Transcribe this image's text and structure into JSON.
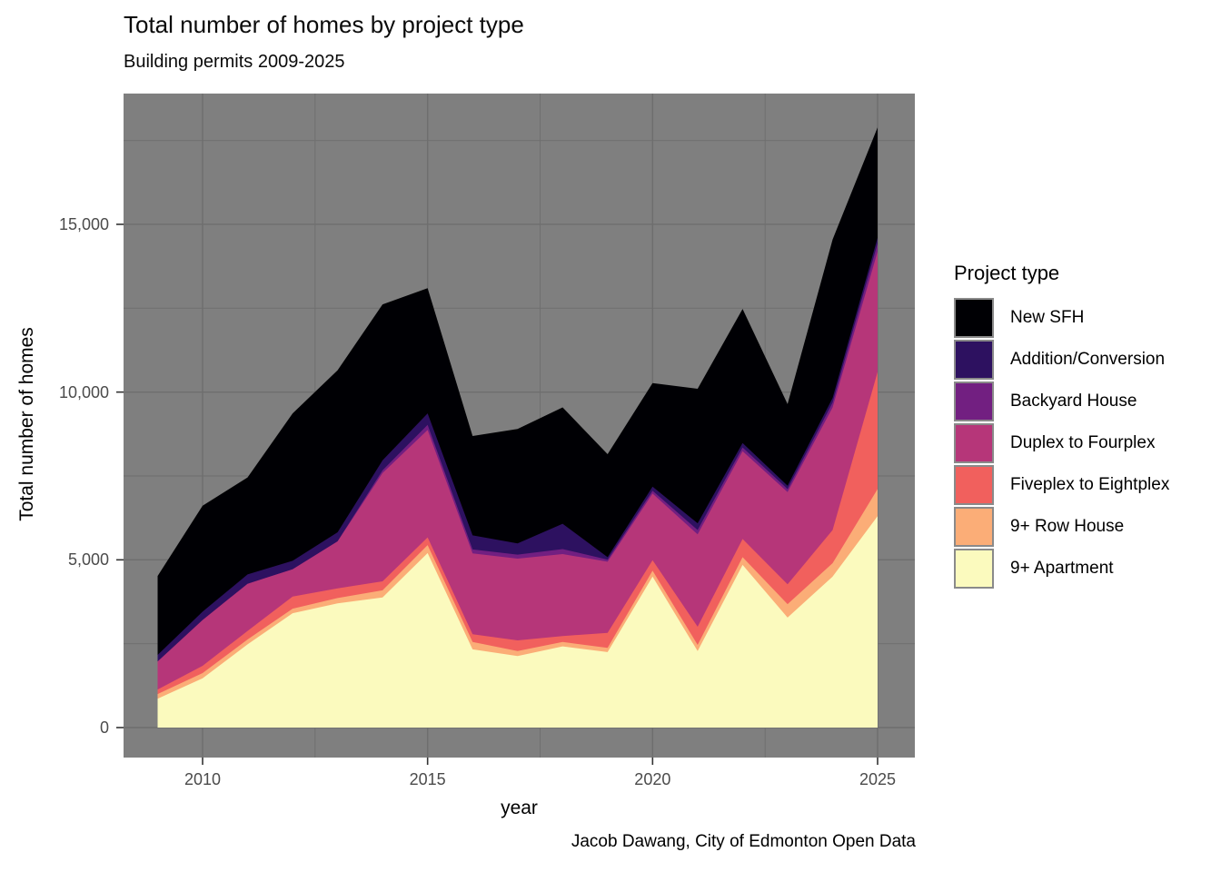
{
  "header": {
    "title": "Total number of homes by project type",
    "subtitle": "Building permits 2009-2025"
  },
  "caption": "Jacob Dawang, City of Edmonton Open Data",
  "legend": {
    "title": "Project type",
    "position": "right"
  },
  "axes": {
    "x_label": "year",
    "y_label": "Total number of homes",
    "x_tick_labels": [
      "2010",
      "2015",
      "2020",
      "2025"
    ],
    "y_tick_labels": [
      "0",
      "5,000",
      "10,000",
      "15,000"
    ]
  },
  "chart_data": {
    "type": "area",
    "stacked": true,
    "title": "Total number of homes by project type",
    "subtitle": "Building permits 2009-2025",
    "caption": "Jacob Dawang, City of Edmonton Open Data",
    "xlabel": "year",
    "ylabel": "Total number of homes",
    "legend_title": "Project type",
    "legend_position": "right",
    "grid": true,
    "panel_background": "#7f7f7f",
    "gridline_color": "#6e6e6e",
    "x": [
      2009,
      2010,
      2011,
      2012,
      2013,
      2014,
      2015,
      2016,
      2017,
      2018,
      2019,
      2020,
      2021,
      2022,
      2023,
      2024,
      2025
    ],
    "x_ticks": {
      "values": [
        2010,
        2015,
        2020,
        2025
      ],
      "minor": [
        2012.5,
        2017.5,
        2022.5
      ]
    },
    "y_ticks": {
      "values": [
        0,
        5000,
        10000,
        15000
      ],
      "labels": [
        "0",
        "5,000",
        "10,000",
        "15,000"
      ],
      "minor": [
        2500,
        7500,
        12500,
        17500
      ]
    },
    "ylim": [
      0,
      18800
    ],
    "series": [
      {
        "name": "New SFH",
        "color": "#000004",
        "values": [
          2355,
          3160,
          2890,
          4395,
          4830,
          4650,
          3735,
          2960,
          3410,
          3470,
          3070,
          3090,
          4010,
          4000,
          2430,
          4725,
          3290
        ]
      },
      {
        "name": "Addition/Conversion",
        "color": "#2d1160",
        "values": [
          195,
          250,
          280,
          250,
          270,
          295,
          345,
          420,
          335,
          755,
          75,
          120,
          200,
          130,
          100,
          135,
          170
        ]
      },
      {
        "name": "Backyard House",
        "color": "#721f81",
        "values": [
          0,
          0,
          0,
          0,
          0,
          80,
          150,
          120,
          120,
          150,
          60,
          85,
          130,
          110,
          90,
          145,
          240
        ]
      },
      {
        "name": "Duplex to Fourplex",
        "color": "#b63679",
        "values": [
          835,
          1365,
          1405,
          815,
          1400,
          3230,
          3200,
          2410,
          2435,
          2440,
          2120,
          1985,
          2755,
          2620,
          2750,
          3655,
          3590
        ]
      },
      {
        "name": "Fiveplex to Eightplex",
        "color": "#f1605d",
        "values": [
          135,
          215,
          255,
          360,
          290,
          270,
          230,
          230,
          320,
          180,
          450,
          315,
          540,
          540,
          590,
          990,
          3490
        ]
      },
      {
        "name": "9+ Row House",
        "color": "#fbad77",
        "values": [
          140,
          155,
          145,
          135,
          160,
          210,
          240,
          220,
          150,
          130,
          125,
          175,
          185,
          230,
          400,
          400,
          810
        ]
      },
      {
        "name": "9+ Apartment",
        "color": "#fbfabe",
        "values": [
          860,
          1470,
          2480,
          3410,
          3700,
          3880,
          5200,
          2330,
          2130,
          2420,
          2250,
          4500,
          2280,
          4850,
          3280,
          4500,
          6300
        ]
      }
    ],
    "totals": [
      4520,
      6615,
      7455,
      9365,
      10650,
      12615,
      13100,
      8690,
      8900,
      9545,
      8150,
      10270,
      10100,
      12480,
      9640,
      14550,
      17890
    ]
  }
}
